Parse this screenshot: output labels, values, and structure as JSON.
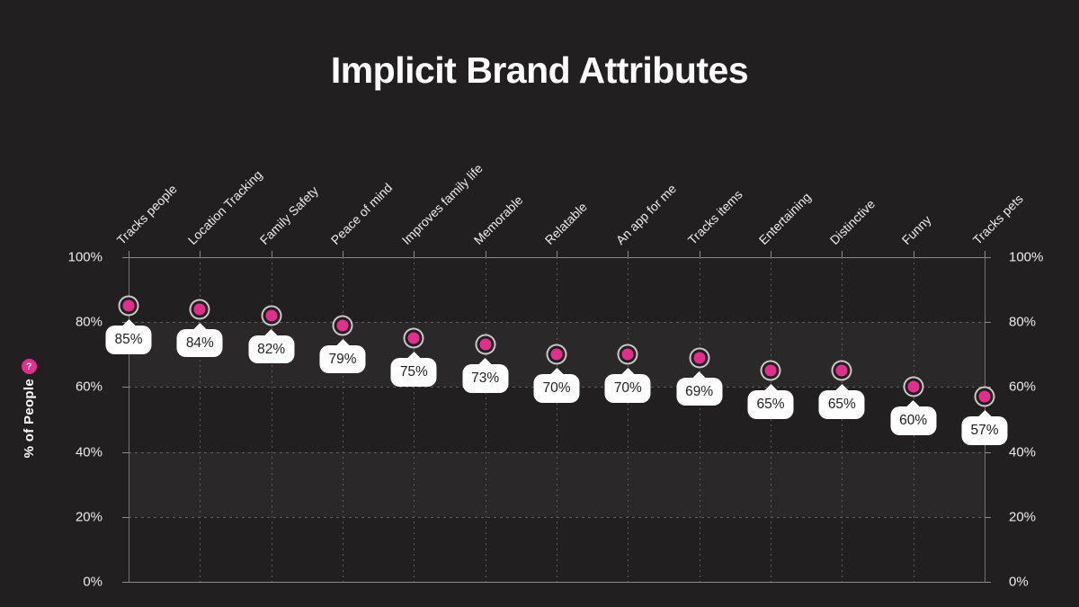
{
  "y_axis": {
    "help_icon": "?"
  },
  "chart_data": {
    "type": "scatter",
    "title": "Implicit Brand Attributes",
    "categories": [
      "Tracks people",
      "Location Tracking",
      "Family Safety",
      "Peace of mind",
      "Improves family life",
      "Memorable",
      "Relatable",
      "An app for me",
      "Tracks items",
      "Entertaining",
      "Distinctive",
      "Funny",
      "Tracks pets"
    ],
    "values": [
      85,
      84,
      82,
      79,
      75,
      73,
      70,
      70,
      69,
      65,
      65,
      60,
      57
    ],
    "point_labels": [
      "85%",
      "84%",
      "82%",
      "79%",
      "75%",
      "73%",
      "70%",
      "70%",
      "69%",
      "65%",
      "65%",
      "60%",
      "57%"
    ],
    "ylabel": "% of People",
    "ylim": [
      0,
      100
    ],
    "y_tick_values": [
      100,
      80,
      60,
      40,
      20,
      0
    ],
    "y_tick_labels": [
      "100%",
      "80%",
      "60%",
      "40%",
      "20%",
      "0%"
    ],
    "y_axis_sides": "both",
    "x_label_rotation_deg": -45,
    "grid": "dashed",
    "zebra_bands": [
      [
        60,
        80
      ],
      [
        20,
        40
      ]
    ],
    "legend": "none",
    "colors": {
      "background": "#221F20",
      "point": "#E62C8D",
      "point_ring": "#C9C9C9",
      "band": "rgba(255,255,255,0.045)",
      "grid_dashed": "#606060",
      "axis_solid": "#8A8A8A",
      "callout_bg": "#FFFFFF",
      "callout_text": "#1E1E1E",
      "tick_text": "#ECECEC",
      "title_text": "#FFFFFF"
    }
  }
}
